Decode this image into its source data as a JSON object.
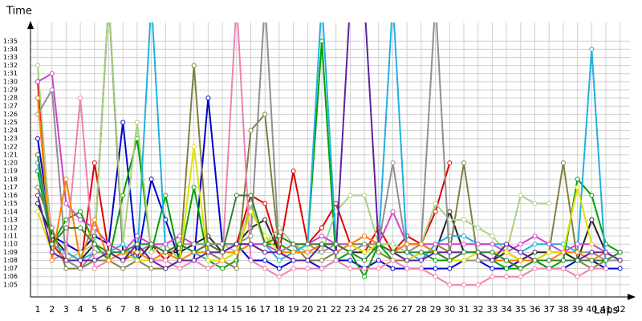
{
  "chart_data": {
    "type": "line",
    "y_label": "Time",
    "x_label": "Laps",
    "categories": [
      "1",
      "2",
      "3",
      "4",
      "5",
      "6",
      "7",
      "8",
      "9",
      "10",
      "11",
      "12",
      "13",
      "14",
      "15",
      "16",
      "17",
      "18",
      "19",
      "20",
      "21",
      "22",
      "23",
      "24",
      "25",
      "26",
      "27",
      "28",
      "29",
      "30",
      "31",
      "32",
      "33",
      "34",
      "35",
      "36",
      "37",
      "38",
      "39",
      "40",
      "41",
      "42"
    ],
    "ylim": [
      63.5,
      97.3
    ],
    "yticks": [
      {
        "value": 65,
        "label": "1:05"
      },
      {
        "value": 66,
        "label": "1:06"
      },
      {
        "value": 67,
        "label": "1:07"
      },
      {
        "value": 68,
        "label": "1:08"
      },
      {
        "value": 69,
        "label": "1:09"
      },
      {
        "value": 70,
        "label": "1:10"
      },
      {
        "value": 71,
        "label": "1:11"
      },
      {
        "value": 72,
        "label": "1:12"
      },
      {
        "value": 73,
        "label": "1:13"
      },
      {
        "value": 74,
        "label": "1:14"
      },
      {
        "value": 75,
        "label": "1:15"
      },
      {
        "value": 76,
        "label": "1:16"
      },
      {
        "value": 77,
        "label": "1:17"
      },
      {
        "value": 78,
        "label": "1:18"
      },
      {
        "value": 79,
        "label": "1:19"
      },
      {
        "value": 80,
        "label": "1:20"
      },
      {
        "value": 81,
        "label": "1:21"
      },
      {
        "value": 82,
        "label": "1:22"
      },
      {
        "value": 83,
        "label": "1:23"
      },
      {
        "value": 84,
        "label": "1:24"
      },
      {
        "value": 85,
        "label": "1:25"
      },
      {
        "value": 86,
        "label": "1:26"
      },
      {
        "value": 87,
        "label": "1:27"
      },
      {
        "value": 88,
        "label": "1:28"
      },
      {
        "value": 89,
        "label": "1:29"
      },
      {
        "value": 90,
        "label": "1:30"
      },
      {
        "value": 91,
        "label": "1:31"
      },
      {
        "value": 92,
        "label": "1:32"
      },
      {
        "value": 93,
        "label": "1:33"
      },
      {
        "value": 94,
        "label": "1:34"
      },
      {
        "value": 95,
        "label": "1:35"
      }
    ],
    "grid": true,
    "series": [
      {
        "color": "#e00000",
        "values": [
          90,
          70,
          68,
          67,
          80,
          69,
          68,
          69,
          70,
          68,
          70,
          69,
          70,
          70,
          70,
          76,
          75,
          69,
          79,
          70,
          72,
          75,
          70,
          69,
          72,
          69,
          71,
          70,
          74,
          80,
          null,
          null,
          null,
          null,
          null,
          null,
          null,
          null,
          null,
          null,
          null,
          null
        ]
      },
      {
        "color": "#0000cc",
        "values": [
          83,
          71,
          70,
          69,
          71,
          70,
          85,
          68,
          78,
          73,
          68,
          68,
          88,
          70,
          70,
          68,
          68,
          67,
          68,
          68,
          67,
          68,
          68,
          67,
          68,
          67,
          67,
          67,
          67,
          67,
          68,
          68,
          67,
          67,
          68,
          68,
          67,
          67,
          68,
          68,
          67,
          67
        ]
      },
      {
        "color": "#00a000",
        "values": [
          79,
          70,
          73,
          74,
          70,
          68,
          76,
          83,
          69,
          76,
          68,
          77,
          68,
          67,
          68,
          75,
          70,
          70,
          69,
          70,
          95,
          68,
          69,
          66,
          70,
          68,
          68,
          69,
          68,
          68,
          68,
          68,
          68,
          67,
          67,
          68,
          67,
          68,
          78,
          76,
          70,
          69
        ]
      },
      {
        "color": "#222222",
        "values": [
          75,
          71,
          69,
          68,
          70,
          100,
          69,
          68,
          70,
          69,
          69,
          70,
          71,
          69,
          70,
          72,
          73,
          69,
          70,
          69,
          70,
          70,
          69,
          69,
          70,
          69,
          70,
          70,
          69,
          74,
          69,
          69,
          68,
          69,
          68,
          69,
          69,
          69,
          68,
          73,
          69,
          68
        ]
      },
      {
        "color": "#808040",
        "values": [
          77,
          72,
          67,
          67,
          68,
          68,
          67,
          68,
          67,
          67,
          68,
          92,
          69,
          68,
          67,
          84,
          86,
          69,
          70,
          68,
          68,
          69,
          70,
          70,
          69,
          68,
          68,
          68,
          70,
          69,
          80,
          68,
          68,
          68,
          67,
          68,
          69,
          80,
          68,
          67,
          68,
          null
        ]
      },
      {
        "color": "#a8d080",
        "values": [
          92,
          69,
          68,
          69,
          70,
          100,
          70,
          85,
          69,
          70,
          68,
          69,
          70,
          70,
          69,
          75,
          70,
          72,
          70,
          69,
          69,
          74,
          76,
          76,
          70,
          70,
          69,
          70,
          75,
          73,
          73,
          72,
          71,
          69,
          76,
          75,
          75,
          null,
          null,
          null,
          null,
          null
        ]
      },
      {
        "color": "#20b0e0",
        "values": [
          80,
          70,
          69,
          68,
          69,
          69,
          70,
          68,
          100,
          69,
          70,
          69,
          68,
          68,
          69,
          70,
          70,
          68,
          69,
          70,
          100,
          70,
          69,
          70,
          70,
          100,
          69,
          68,
          70,
          71,
          71,
          70,
          70,
          70,
          69,
          70,
          70,
          70,
          69,
          94,
          67,
          null
        ]
      },
      {
        "color": "#d040d0",
        "values": [
          90,
          91,
          75,
          73,
          72,
          70,
          69,
          71,
          70,
          70,
          71,
          70,
          70,
          69,
          70,
          70,
          70,
          69,
          70,
          70,
          71,
          70,
          70,
          71,
          70,
          74,
          70,
          70,
          70,
          70,
          70,
          70,
          70,
          69,
          70,
          71,
          70,
          69,
          70,
          70,
          69,
          68
        ]
      },
      {
        "color": "#f080b0",
        "values": [
          88,
          68,
          69,
          88,
          67,
          68,
          69,
          68,
          68,
          68,
          67,
          68,
          67,
          68,
          100,
          68,
          67,
          66,
          67,
          67,
          67,
          68,
          67,
          67,
          67,
          68,
          67,
          67,
          66,
          65,
          65,
          65,
          66,
          66,
          66,
          67,
          67,
          67,
          66,
          67,
          67,
          null
        ]
      },
      {
        "color": "#909090",
        "values": [
          86,
          89,
          68,
          67,
          69,
          69,
          69,
          69,
          70,
          69,
          70,
          70,
          70,
          70,
          70,
          71,
          100,
          69,
          70,
          70,
          69,
          70,
          69,
          70,
          70,
          80,
          69,
          70,
          100,
          68,
          68,
          68,
          68,
          68,
          68,
          68,
          69,
          69,
          69,
          69,
          68,
          68
        ]
      },
      {
        "color": "#e0e000",
        "values": [
          74,
          69,
          68,
          68,
          73,
          68,
          69,
          68,
          68,
          69,
          68,
          82,
          68,
          68,
          69,
          74,
          71,
          69,
          69,
          69,
          70,
          69,
          70,
          69,
          70,
          69,
          68,
          69,
          69,
          68,
          68,
          69,
          69,
          69,
          68,
          68,
          69,
          69,
          77,
          70,
          null,
          null
        ]
      },
      {
        "color": "#ff8000",
        "values": [
          88,
          68,
          78,
          68,
          73,
          68,
          69,
          69,
          68,
          69,
          68,
          69,
          69,
          69,
          69,
          70,
          69,
          69,
          69,
          69,
          70,
          69,
          70,
          71,
          70,
          69,
          70,
          70,
          69,
          68,
          69,
          69,
          68,
          68,
          68,
          68,
          68,
          69,
          69,
          68,
          69,
          68
        ]
      },
      {
        "color": "#6020a0",
        "values": [
          76,
          69,
          68,
          68,
          68,
          69,
          68,
          70,
          68,
          67,
          68,
          68,
          69,
          69,
          70,
          70,
          69,
          69,
          68,
          68,
          70,
          69,
          100,
          100,
          70,
          69,
          68,
          68,
          69,
          69,
          69,
          69,
          68,
          70,
          69,
          68,
          68,
          68,
          68,
          69,
          69,
          68
        ]
      },
      {
        "color": "#308030",
        "values": [
          81,
          70,
          72,
          72,
          70,
          69,
          69,
          70,
          70,
          69,
          70,
          69,
          70,
          69,
          76,
          76,
          70,
          71,
          70,
          70,
          70,
          70,
          69,
          68,
          70,
          69,
          69,
          69,
          69,
          68,
          69,
          69,
          69,
          68,
          67,
          68,
          68,
          68,
          68,
          68,
          68,
          69
        ]
      }
    ]
  }
}
